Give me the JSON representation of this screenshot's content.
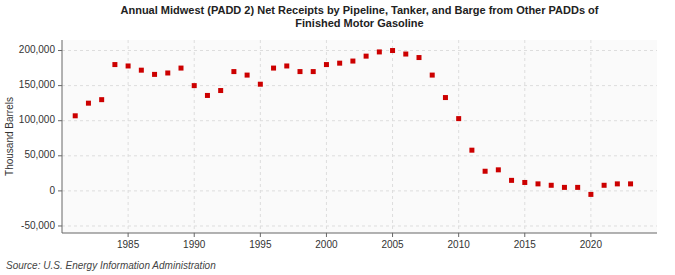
{
  "chart_data": {
    "type": "scatter",
    "title": "Annual Midwest (PADD 2) Net Receipts by Pipeline, Tanker, and Barge from Other PADDs of\nFinished Motor Gasoline",
    "y_label": "Thousand Barrels",
    "annotations": [
      "Source: U.S. Energy Information Administration"
    ],
    "color": "#cc0000",
    "marker": "square",
    "grid": true,
    "x": [
      1981,
      1982,
      1983,
      1984,
      1985,
      1986,
      1987,
      1988,
      1989,
      1990,
      1991,
      1992,
      1993,
      1994,
      1995,
      1996,
      1997,
      1998,
      1999,
      2000,
      2001,
      2002,
      2003,
      2004,
      2005,
      2006,
      2007,
      2008,
      2009,
      2010,
      2011,
      2012,
      2013,
      2014,
      2015,
      2016,
      2017,
      2018,
      2019,
      2020,
      2021,
      2022,
      2023
    ],
    "values": [
      107000,
      125000,
      130000,
      180000,
      178000,
      172000,
      166000,
      168000,
      175000,
      150000,
      136000,
      143000,
      170000,
      165000,
      152000,
      175000,
      178000,
      170000,
      170000,
      180000,
      182000,
      185000,
      192000,
      198000,
      200000,
      195000,
      190000,
      165000,
      133000,
      103000,
      58000,
      28000,
      30000,
      15000,
      12000,
      10000,
      8000,
      5000,
      5000,
      -5000,
      8000,
      10000,
      10000
    ],
    "xlim": [
      1980,
      2025
    ],
    "xticks": [
      1985,
      1990,
      1995,
      2000,
      2005,
      2010,
      2015,
      2020
    ],
    "ylim": [
      -60000,
      215000
    ],
    "yticks": [
      {
        "value": -50000,
        "label": "-50,000"
      },
      0,
      {
        "value": 50000,
        "label": "50,000"
      },
      {
        "value": 100000,
        "label": "100,000"
      },
      {
        "value": 150000,
        "label": "150,000"
      },
      {
        "value": 200000,
        "label": "200,000"
      }
    ]
  }
}
